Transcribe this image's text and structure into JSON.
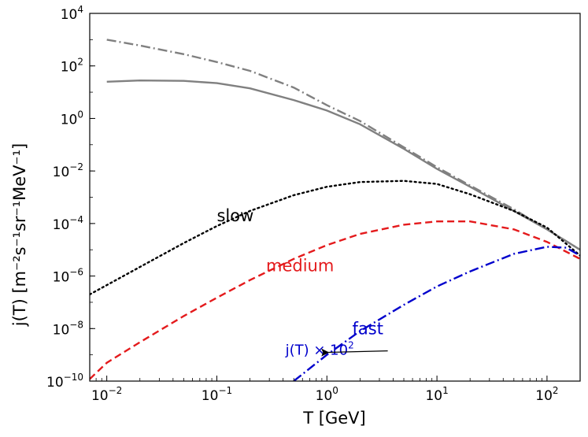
{
  "chart_data": {
    "type": "line",
    "xlabel": "T [GeV]",
    "ylabel": "j(T) [m⁻²s⁻¹sr⁻¹MeV⁻¹]",
    "xscale": "log",
    "yscale": "log",
    "xlim": [
      0.007,
      200
    ],
    "ylim": [
      1e-10,
      10000
    ],
    "grid": false,
    "x_ticks": [
      {
        "value": 0.01,
        "label": "10",
        "exp": "−2"
      },
      {
        "value": 0.1,
        "label": "10",
        "exp": "−1"
      },
      {
        "value": 1,
        "label": "10",
        "exp": "0"
      },
      {
        "value": 10,
        "label": "10",
        "exp": "1"
      },
      {
        "value": 100,
        "label": "10",
        "exp": "2"
      }
    ],
    "y_ticks": [
      {
        "value": 1e-10,
        "label": "10",
        "exp": "−10"
      },
      {
        "value": 1e-08,
        "label": "10",
        "exp": "−8"
      },
      {
        "value": 1e-06,
        "label": "10",
        "exp": "−6"
      },
      {
        "value": 0.0001,
        "label": "10",
        "exp": "−4"
      },
      {
        "value": 0.01,
        "label": "10",
        "exp": "−2"
      },
      {
        "value": 1,
        "label": "10",
        "exp": "0"
      },
      {
        "value": 100,
        "label": "10",
        "exp": "2"
      },
      {
        "value": 10000,
        "label": "10",
        "exp": "4"
      }
    ],
    "series": [
      {
        "color": "#808080",
        "style": "solid",
        "x": [
          0.01,
          0.02,
          0.05,
          0.1,
          0.2,
          0.5,
          1,
          2,
          5,
          10,
          20,
          50,
          100,
          200
        ],
        "y": [
          25,
          28,
          27,
          22,
          14,
          5,
          2,
          0.6,
          0.07,
          0.012,
          0.0025,
          0.0003,
          6e-05,
          1e-05
        ]
      },
      {
        "color": "#808080",
        "style": "dashdot",
        "x": [
          0.01,
          0.02,
          0.05,
          0.1,
          0.2,
          0.5,
          1,
          2,
          5,
          10,
          20,
          50,
          100,
          200
        ],
        "y": [
          1000,
          600,
          280,
          140,
          65,
          15,
          3.2,
          0.8,
          0.08,
          0.014,
          0.0028,
          0.00035,
          6e-05,
          1e-05
        ]
      },
      {
        "color": "#000000",
        "style": "dotted",
        "x": [
          0.007,
          0.01,
          0.02,
          0.05,
          0.1,
          0.2,
          0.5,
          1,
          2,
          5,
          10,
          20,
          50,
          100,
          200
        ],
        "y": [
          2e-07,
          4.5e-07,
          2.2e-06,
          1.8e-05,
          8e-05,
          0.0003,
          0.0012,
          0.0025,
          0.0038,
          0.0042,
          0.0032,
          0.0013,
          0.0003,
          7e-05,
          6e-06
        ]
      },
      {
        "color": "#e41a1c",
        "style": "dashed",
        "x": [
          0.007,
          0.01,
          0.02,
          0.05,
          0.1,
          0.2,
          0.5,
          1,
          2,
          5,
          10,
          20,
          50,
          100,
          200
        ],
        "y": [
          1.2e-10,
          5e-10,
          3e-09,
          3e-08,
          1.5e-07,
          7e-07,
          4.5e-06,
          1.5e-05,
          4e-05,
          9e-05,
          0.00012,
          0.00012,
          6e-05,
          2e-05,
          4.5e-06
        ]
      },
      {
        "color": "#0000cc",
        "style": "dashdot",
        "x": [
          0.5,
          1,
          2,
          5,
          10,
          20,
          50,
          100,
          150,
          200
        ],
        "y": [
          1e-10,
          1e-09,
          8e-09,
          8e-08,
          4e-07,
          1.5e-06,
          7e-06,
          1.3e-05,
          1.2e-05,
          6e-06
        ]
      }
    ],
    "annotations": [
      {
        "text": "slow",
        "color": "#000000",
        "x": 0.1,
        "y": 0.00012
      },
      {
        "text": "medium",
        "color": "#e41a1c",
        "x": 0.28,
        "y": 1.5e-06
      },
      {
        "text": "fast",
        "color": "#0000cc",
        "x": 1.7,
        "y": 6e-09
      },
      {
        "text": "j(T) × 10",
        "sup": "2",
        "color": "#0000cc",
        "x": 0.42,
        "y": 1e-09
      }
    ]
  }
}
